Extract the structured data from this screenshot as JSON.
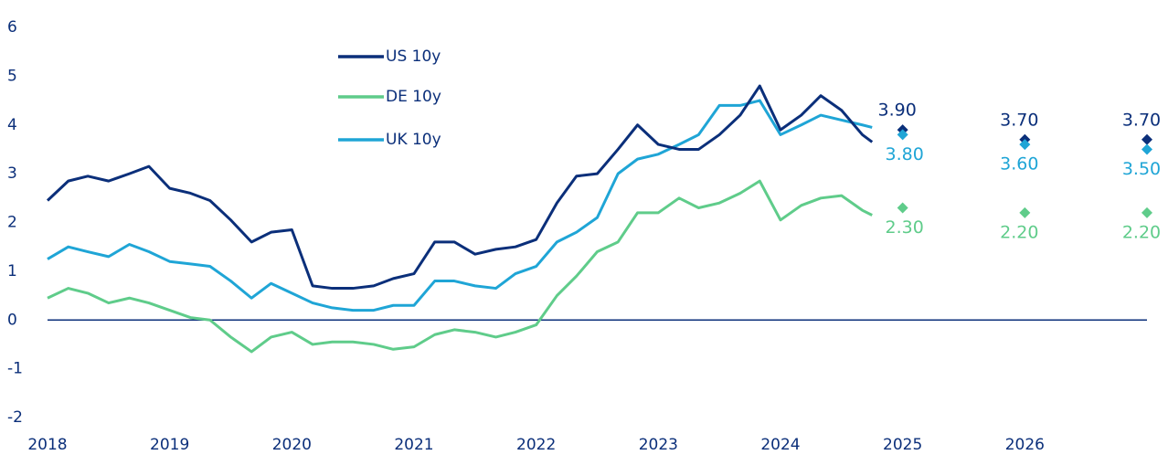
{
  "chart_data": {
    "type": "line",
    "x": [
      2018,
      2018.17,
      2018.33,
      2018.5,
      2018.67,
      2018.83,
      2019,
      2019.17,
      2019.33,
      2019.5,
      2019.67,
      2019.83,
      2020,
      2020.17,
      2020.33,
      2020.5,
      2020.67,
      2020.83,
      2021,
      2021.17,
      2021.33,
      2021.5,
      2021.67,
      2021.83,
      2022,
      2022.17,
      2022.33,
      2022.5,
      2022.67,
      2022.83,
      2023,
      2023.17,
      2023.33,
      2023.5,
      2023.67,
      2023.83,
      2024,
      2024.17,
      2024.33,
      2024.5,
      2024.67,
      2024.75
    ],
    "xlim": [
      2018,
      2027
    ],
    "xticks": [
      2018,
      2019,
      2020,
      2021,
      2022,
      2023,
      2024,
      2025,
      2026
    ],
    "ylim": [
      -2,
      6
    ],
    "yticks": [
      -2,
      -1,
      0,
      1,
      2,
      3,
      4,
      5,
      6
    ],
    "forecast_x": [
      2025,
      2026,
      2027
    ],
    "series": [
      {
        "name": "US 10y",
        "color": "#0b2f7a",
        "values": [
          2.45,
          2.85,
          2.95,
          2.85,
          3.0,
          3.15,
          2.7,
          2.6,
          2.45,
          2.05,
          1.6,
          1.8,
          1.85,
          0.7,
          0.65,
          0.65,
          0.7,
          0.85,
          0.95,
          1.6,
          1.6,
          1.35,
          1.45,
          1.5,
          1.65,
          2.4,
          2.95,
          3.0,
          3.5,
          4.0,
          3.6,
          3.5,
          3.5,
          3.8,
          4.2,
          4.8,
          3.9,
          4.2,
          4.6,
          4.3,
          3.8,
          3.65
        ],
        "forecast": [
          3.9,
          3.7,
          3.7
        ],
        "forecast_labels": [
          "3.90",
          "3.70",
          "3.70"
        ]
      },
      {
        "name": "DE 10y",
        "color": "#5fcc8a",
        "values": [
          0.45,
          0.65,
          0.55,
          0.35,
          0.45,
          0.35,
          0.2,
          0.05,
          0.0,
          -0.35,
          -0.65,
          -0.35,
          -0.25,
          -0.5,
          -0.45,
          -0.45,
          -0.5,
          -0.6,
          -0.55,
          -0.3,
          -0.2,
          -0.25,
          -0.35,
          -0.25,
          -0.1,
          0.5,
          0.9,
          1.4,
          1.6,
          2.2,
          2.2,
          2.5,
          2.3,
          2.4,
          2.6,
          2.85,
          2.05,
          2.35,
          2.5,
          2.55,
          2.25,
          2.15
        ],
        "forecast": [
          2.3,
          2.2,
          2.2
        ],
        "forecast_labels": [
          "2.30",
          "2.20",
          "2.20"
        ]
      },
      {
        "name": "UK 10y",
        "color": "#1fa5d6",
        "values": [
          1.25,
          1.5,
          1.4,
          1.3,
          1.55,
          1.4,
          1.2,
          1.15,
          1.1,
          0.8,
          0.45,
          0.75,
          0.55,
          0.35,
          0.25,
          0.2,
          0.2,
          0.3,
          0.3,
          0.8,
          0.8,
          0.7,
          0.65,
          0.95,
          1.1,
          1.6,
          1.8,
          2.1,
          3.0,
          3.3,
          3.4,
          3.6,
          3.8,
          4.4,
          4.4,
          4.5,
          3.8,
          4.0,
          4.2,
          4.1,
          4.0,
          3.95
        ],
        "forecast": [
          3.8,
          3.6,
          3.5
        ],
        "forecast_labels": [
          "3.80",
          "3.60",
          "3.50"
        ]
      }
    ]
  }
}
